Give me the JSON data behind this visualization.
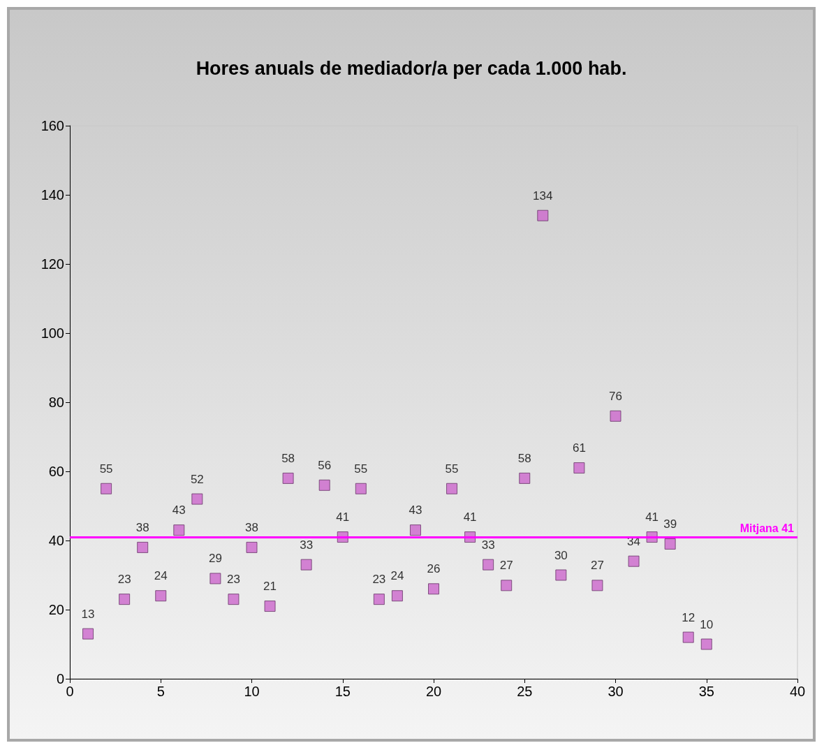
{
  "chart_data": {
    "type": "scatter",
    "title": "Hores anuals de mediador/a per cada 1.000 hab.",
    "x": [
      1,
      2,
      3,
      4,
      5,
      6,
      7,
      8,
      9,
      10,
      11,
      12,
      13,
      14,
      15,
      16,
      17,
      18,
      19,
      20,
      21,
      22,
      23,
      24,
      25,
      26,
      27,
      28,
      29,
      30,
      31,
      32,
      33,
      34,
      35
    ],
    "series": [
      {
        "color": "#cc66cc",
        "values": [
          13,
          55,
          23,
          38,
          24,
          43,
          52,
          29,
          23,
          38,
          21,
          58,
          33,
          56,
          41,
          55,
          23,
          24,
          43,
          26,
          55,
          41,
          33,
          27,
          58,
          134,
          30,
          61,
          27,
          76,
          34,
          41,
          39,
          12,
          10
        ]
      }
    ],
    "xlim": [
      0,
      40
    ],
    "xticks": [
      0,
      5,
      10,
      15,
      20,
      25,
      30,
      35,
      40
    ],
    "ylim": [
      0,
      160
    ],
    "yticks": [
      0,
      20,
      40,
      60,
      80,
      100,
      120,
      140,
      160
    ],
    "ref_lines": [
      {
        "axis": "y",
        "value": 41,
        "label": "Mitjana 41",
        "color": "#ff00ff"
      }
    ],
    "marker": "square",
    "data_labels": true
  }
}
